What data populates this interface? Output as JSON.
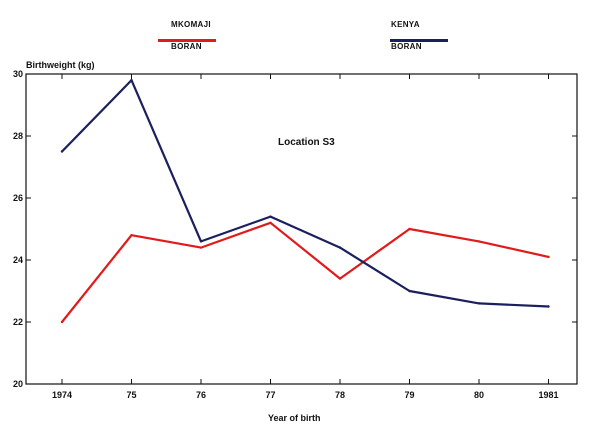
{
  "chart_data": {
    "type": "line",
    "ylabel": "Birthweight (kg)",
    "xlabel": "Year of birth",
    "annotation": "Location S3",
    "categories": [
      "1974",
      "75",
      "76",
      "77",
      "78",
      "79",
      "80",
      "1981"
    ],
    "ylim": [
      20,
      30
    ],
    "yticks": [
      "20",
      "22",
      "24",
      "26",
      "28",
      "30"
    ],
    "grid": false,
    "legend_position": "top",
    "series": [
      {
        "name_lines": [
          "MKOMAJI",
          "BORAN"
        ],
        "color": "#e01b1b",
        "values": [
          22.0,
          24.8,
          24.4,
          25.2,
          23.4,
          25.0,
          24.6,
          24.1
        ]
      },
      {
        "name_lines": [
          "KENYA",
          "BORAN"
        ],
        "color": "#1c1f5e",
        "values": [
          27.5,
          29.8,
          24.6,
          25.4,
          24.4,
          23.0,
          22.6,
          22.5
        ]
      }
    ]
  }
}
